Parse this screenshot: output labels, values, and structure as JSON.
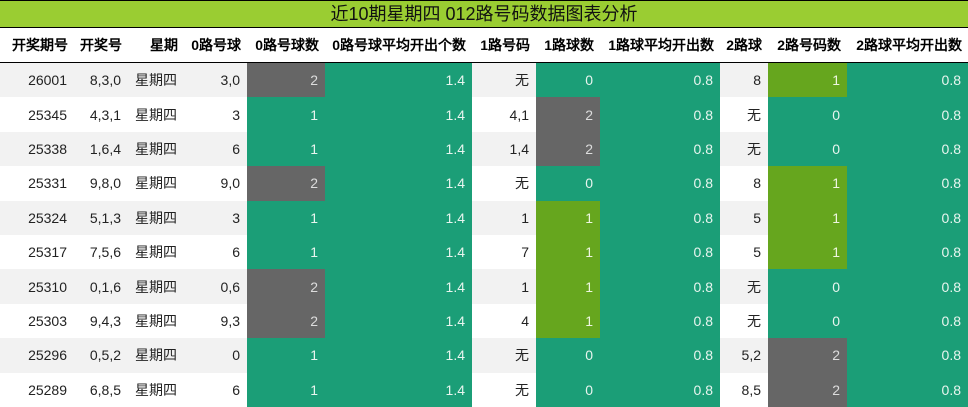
{
  "title": "近10期星期四 012路号码数据图表分析",
  "colors": {
    "title_bg": "#9acd32",
    "count_0": "#1b9e77",
    "count_1": "#66a61e",
    "count_2": "#666666",
    "average": "#1b9e77"
  },
  "headers": [
    "开奖期号",
    "开奖号",
    "星期",
    "0路号球",
    "0路号球数",
    "0路号球平均开出个数",
    "1路号码",
    "1路球数",
    "1路球平均开出数",
    "2路球",
    "2路号码数",
    "2路球平均开出数"
  ],
  "rows": [
    [
      "26001",
      "8,3,0",
      "星期四",
      "3,0",
      "2",
      "1.4",
      "无",
      "0",
      "0.8",
      "8",
      "1",
      "0.8"
    ],
    [
      "25345",
      "4,3,1",
      "星期四",
      "3",
      "1",
      "1.4",
      "4,1",
      "2",
      "0.8",
      "无",
      "0",
      "0.8"
    ],
    [
      "25338",
      "1,6,4",
      "星期四",
      "6",
      "1",
      "1.4",
      "1,4",
      "2",
      "0.8",
      "无",
      "0",
      "0.8"
    ],
    [
      "25331",
      "9,8,0",
      "星期四",
      "9,0",
      "2",
      "1.4",
      "无",
      "0",
      "0.8",
      "8",
      "1",
      "0.8"
    ],
    [
      "25324",
      "5,1,3",
      "星期四",
      "3",
      "1",
      "1.4",
      "1",
      "1",
      "0.8",
      "5",
      "1",
      "0.8"
    ],
    [
      "25317",
      "7,5,6",
      "星期四",
      "6",
      "1",
      "1.4",
      "7",
      "1",
      "0.8",
      "5",
      "1",
      "0.8"
    ],
    [
      "25310",
      "0,1,6",
      "星期四",
      "0,6",
      "2",
      "1.4",
      "1",
      "1",
      "0.8",
      "无",
      "0",
      "0.8"
    ],
    [
      "25303",
      "9,4,3",
      "星期四",
      "9,3",
      "2",
      "1.4",
      "4",
      "1",
      "0.8",
      "无",
      "0",
      "0.8"
    ],
    [
      "25296",
      "0,5,2",
      "星期四",
      "0",
      "1",
      "1.4",
      "无",
      "0",
      "0.8",
      "5,2",
      "2",
      "0.8"
    ],
    [
      "25289",
      "6,8,5",
      "星期四",
      "6",
      "1",
      "1.4",
      "无",
      "0",
      "0.8",
      "8,5",
      "2",
      "0.8"
    ]
  ]
}
